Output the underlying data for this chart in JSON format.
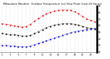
{
  "title": "  Milwaukee Weather  Outdoor Temperature (vs) Dew Point (Last 24 Hours)",
  "title_fontsize": 2.8,
  "bg_color": "#ffffff",
  "plot_bg_color": "#ffffff",
  "grid_color": "#bbbbbb",
  "temp_color": "#dd0000",
  "dew_color": "#0000cc",
  "black_color": "#000000",
  "temp_values": [
    63,
    62,
    61,
    60,
    59,
    58,
    59,
    62,
    67,
    71,
    75,
    78,
    80,
    82,
    83,
    84,
    84,
    83,
    81,
    78,
    74,
    70,
    68,
    66
  ],
  "dew_values": [
    30,
    30,
    29,
    29,
    28,
    28,
    28,
    29,
    31,
    33,
    35,
    37,
    39,
    41,
    43,
    45,
    47,
    49,
    51,
    52,
    53,
    54,
    55,
    56
  ],
  "black_values": [
    48,
    47,
    46,
    46,
    45,
    44,
    44,
    45,
    48,
    51,
    54,
    57,
    59,
    61,
    62,
    63,
    63,
    63,
    62,
    61,
    59,
    57,
    56,
    55
  ],
  "ylim": [
    20,
    90
  ],
  "n_points": 24,
  "ytick_vals": [
    20,
    30,
    40,
    50,
    60,
    70,
    80,
    90
  ],
  "ytick_labels": [
    "20",
    "30",
    "40",
    "50",
    "60",
    "70",
    "80",
    "90"
  ]
}
